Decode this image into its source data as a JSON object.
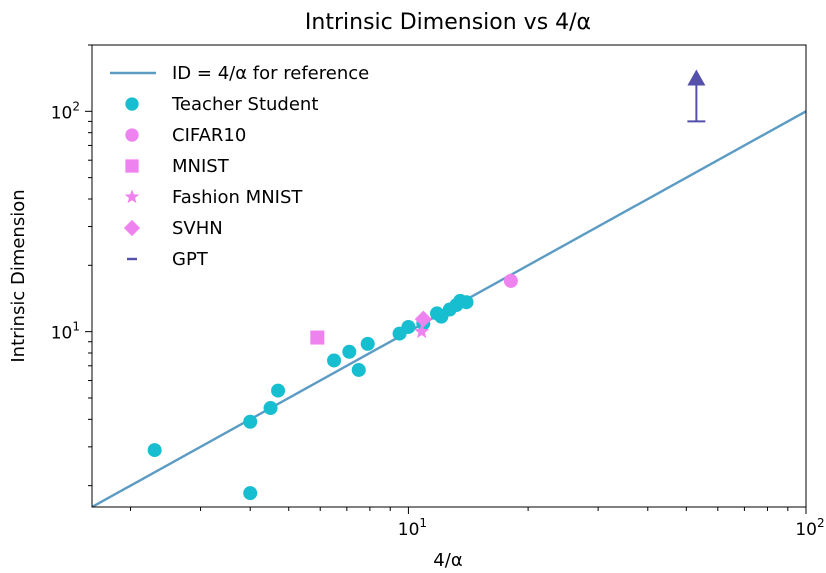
{
  "chart_data": {
    "type": "scatter",
    "title": "Intrinsic Dimension vs 4/α",
    "xlabel": "4/α",
    "ylabel": "Intrinsic Dimension",
    "xscale": "log",
    "yscale": "log",
    "xlim": [
      1.6,
      100
    ],
    "ylim": [
      1.6,
      200
    ],
    "x_ticks": [
      {
        "value": 10,
        "base": "10",
        "exp": "1"
      },
      {
        "value": 100,
        "base": "10",
        "exp": "2"
      }
    ],
    "y_ticks": [
      {
        "value": 10,
        "base": "10",
        "exp": "1"
      },
      {
        "value": 100,
        "base": "10",
        "exp": "2"
      }
    ],
    "grid": false,
    "legend_position": "top-left",
    "reference_line": {
      "name": "ID = 4/α for reference",
      "color": "#5b9bc4",
      "from": [
        1.6,
        1.6
      ],
      "to": [
        100,
        100
      ]
    },
    "series": [
      {
        "name": "Teacher Student",
        "marker": "circle",
        "color": "#17becf",
        "points": [
          [
            2.3,
            2.9
          ],
          [
            4.0,
            3.9
          ],
          [
            4.5,
            4.5
          ],
          [
            4.7,
            5.4
          ],
          [
            4.0,
            1.85
          ],
          [
            6.5,
            7.4
          ],
          [
            7.1,
            8.1
          ],
          [
            7.5,
            6.7
          ],
          [
            7.9,
            8.8
          ],
          [
            9.5,
            9.8
          ],
          [
            10.0,
            10.5
          ],
          [
            10.9,
            10.9
          ],
          [
            11.8,
            12.1
          ],
          [
            12.1,
            11.7
          ],
          [
            12.7,
            12.6
          ],
          [
            13.2,
            13.2
          ],
          [
            13.5,
            13.8
          ],
          [
            14.0,
            13.6
          ]
        ]
      },
      {
        "name": "CIFAR10",
        "marker": "circle",
        "color": "#ee82ee",
        "points": [
          [
            18.1,
            17.0
          ]
        ]
      },
      {
        "name": "MNIST",
        "marker": "square",
        "color": "#ee82ee",
        "points": [
          [
            5.9,
            9.4
          ]
        ]
      },
      {
        "name": "Fashion MNIST",
        "marker": "star",
        "color": "#ee82ee",
        "points": [
          [
            10.8,
            10.0
          ]
        ]
      },
      {
        "name": "SVHN",
        "marker": "diamond",
        "color": "#ee82ee",
        "points": [
          [
            10.9,
            11.4
          ]
        ]
      },
      {
        "name": "GPT",
        "marker": "arrow-up",
        "color": "#5550aa",
        "points": [
          [
            53.0,
            90.0
          ]
        ],
        "arrow_to": 150.0
      }
    ]
  }
}
